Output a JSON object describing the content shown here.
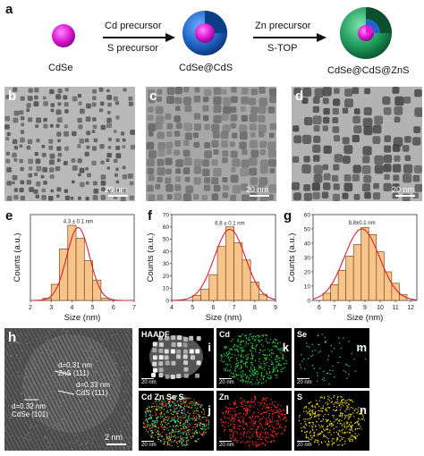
{
  "panel_a": {
    "label": "a",
    "core_label": "CdSe",
    "shell1_label": "CdSe@CdS",
    "shell2_label": "CdSe@CdS@ZnS",
    "step1_top": "Cd precursor",
    "step1_bottom": "S precursor",
    "step2_top": "Zn precursor",
    "step2_bottom": "S-TOP",
    "colors": {
      "core": "#e01ad8",
      "shell1": "#1f66c8",
      "shell2": "#1e9a5a"
    }
  },
  "tem_panels": [
    {
      "label": "b",
      "scale": "20 nm"
    },
    {
      "label": "c",
      "scale": "20 nm"
    },
    {
      "label": "d",
      "scale": "20 nm"
    }
  ],
  "chart_data": [
    {
      "type": "bar",
      "panel": "e",
      "annotation": "4.3 ± 0.1 nm",
      "xlabel": "Size (nm)",
      "ylabel": "Counts (a.u.)",
      "xticks": [
        2,
        3,
        4,
        5,
        6,
        7
      ],
      "xlim": [
        2,
        7
      ],
      "ylim": [
        0,
        80
      ],
      "bar_width": 0.4,
      "centers": [
        2.8,
        3.2,
        3.6,
        4.0,
        4.4,
        4.8,
        5.2,
        5.6
      ],
      "values": [
        2,
        15,
        48,
        70,
        58,
        37,
        19,
        2
      ],
      "fit": {
        "mean": 4.3,
        "sigma": 0.55,
        "peak": 68
      }
    },
    {
      "type": "bar",
      "panel": "f",
      "annotation": "6.8 ± 0.1 nm",
      "xlabel": "Size (nm)",
      "ylabel": "Counts (a.u.)",
      "xticks": [
        4,
        5,
        6,
        7,
        8,
        9
      ],
      "xlim": [
        4,
        9
      ],
      "ylim": [
        0,
        70
      ],
      "yticks": [
        0,
        10,
        20,
        30,
        40,
        50,
        60,
        70
      ],
      "bar_width": 0.4,
      "centers": [
        5.2,
        5.6,
        6.0,
        6.4,
        6.8,
        7.2,
        7.6,
        8.0,
        8.4
      ],
      "values": [
        4,
        9,
        21,
        44,
        60,
        47,
        33,
        15,
        5
      ],
      "fit": {
        "mean": 6.8,
        "sigma": 0.75,
        "peak": 58
      }
    },
    {
      "type": "bar",
      "panel": "g",
      "annotation": "8.8±0.1 nm",
      "xlabel": "Size (nm)",
      "ylabel": "Counts (a.u.)",
      "xticks": [
        6,
        7,
        8,
        9,
        10,
        11,
        12
      ],
      "xlim": [
        5.6,
        12.4
      ],
      "ylim": [
        0,
        60
      ],
      "yticks": [
        0,
        10,
        20,
        30,
        40,
        50,
        60
      ],
      "bar_width": 0.5,
      "centers": [
        6.5,
        7.0,
        7.5,
        8.0,
        8.5,
        9.0,
        9.5,
        10.0,
        10.5,
        11.0,
        11.5
      ],
      "values": [
        5,
        11,
        21,
        31,
        39,
        51,
        46,
        34,
        20,
        12,
        4
      ],
      "fit": {
        "mean": 8.8,
        "sigma": 1.15,
        "peak": 50
      }
    }
  ],
  "panel_h": {
    "label": "h",
    "ann1_line1": "d=0.31 nm",
    "ann1_line2": "ZnS (111)",
    "ann2_line1": "d=0.33 nm",
    "ann2_line2": "CdS (111)",
    "ann3_line1": "d=0.32 nm",
    "ann3_line2": "CdSe (101)",
    "scale": "2 nm"
  },
  "maps": [
    {
      "label": "i",
      "element": "HAADF",
      "scale": "20 nm",
      "color": "#ffffff"
    },
    {
      "label": "k",
      "element": "Cd",
      "scale": "20 nm",
      "color": "#2ecc40"
    },
    {
      "label": "m",
      "element": "Se",
      "scale": "20 nm",
      "color": "#2fd0d8"
    },
    {
      "label": "j",
      "element": "Cd Zn Se S",
      "scale": "20 nm",
      "color": "#ff3030"
    },
    {
      "label": "l",
      "element": "Zn",
      "scale": "20 nm",
      "color": "#ff2a2a"
    },
    {
      "label": "n",
      "element": "S",
      "scale": "20 nm",
      "color": "#e6d21a"
    }
  ]
}
